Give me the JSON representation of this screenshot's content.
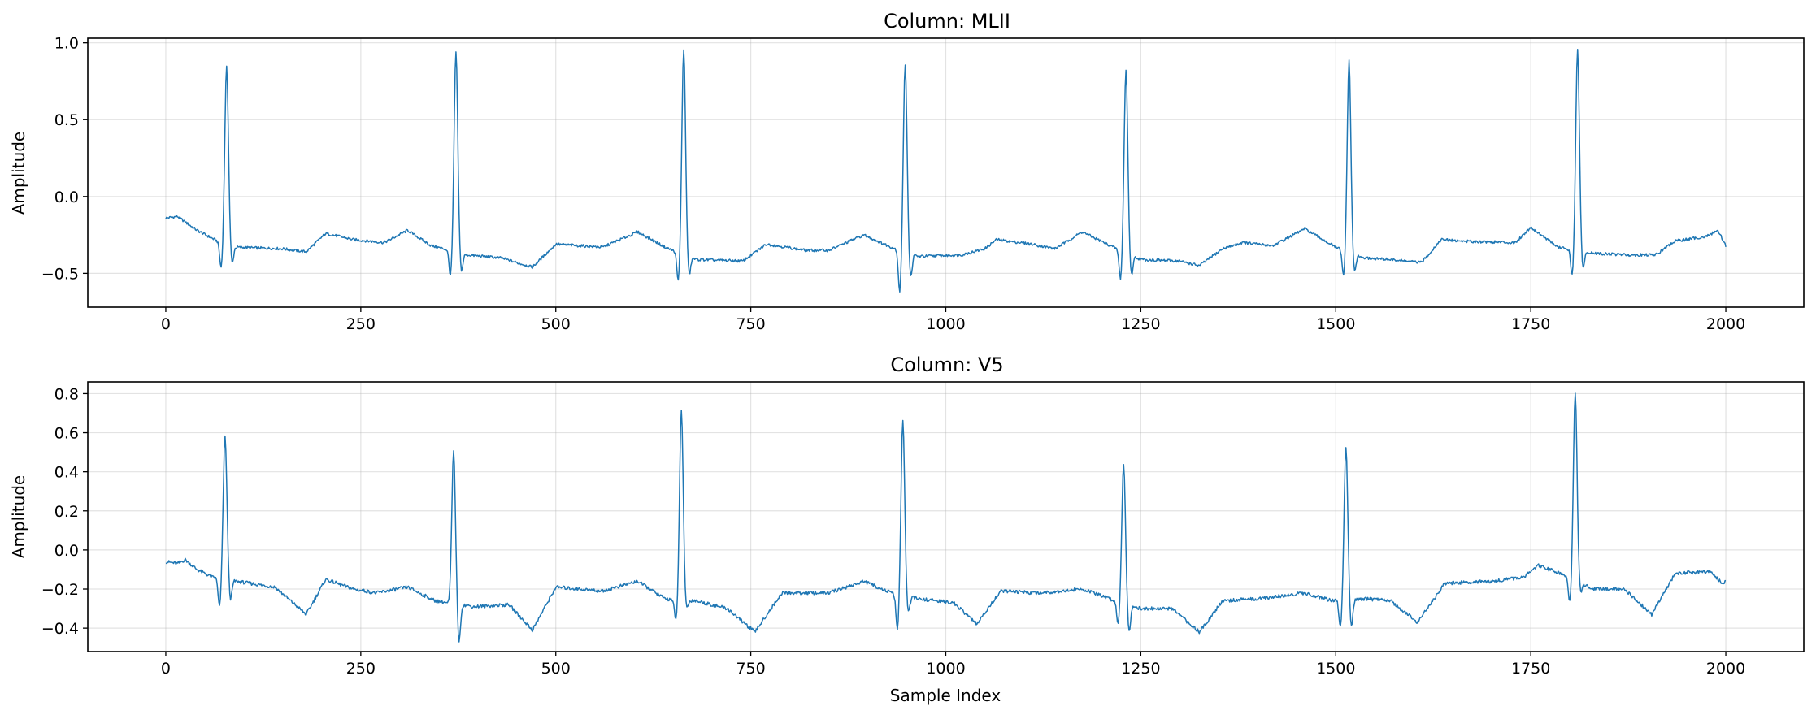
{
  "chart_data": [
    {
      "type": "line",
      "title": "Column: MLII",
      "xlabel": "",
      "ylabel": "Amplitude",
      "xlim": [
        -100,
        2100
      ],
      "ylim": [
        -0.72,
        1.03
      ],
      "xticks": [
        0,
        250,
        500,
        750,
        1000,
        1250,
        1500,
        1750,
        2000
      ],
      "xtick_labels": [
        "0",
        "250",
        "500",
        "750",
        "1000",
        "1250",
        "1500",
        "1750",
        "2000"
      ],
      "yticks": [
        -0.5,
        0.0,
        0.5,
        1.0
      ],
      "ytick_labels": [
        "−0.5",
        "0.0",
        "0.5",
        "1.0"
      ],
      "grid": true,
      "color": "#1f77b4",
      "beats": [
        {
          "peak_x": 78,
          "peak_y": 0.84,
          "q_y": -0.48,
          "s_y": -0.43
        },
        {
          "peak_x": 372,
          "peak_y": 0.94,
          "q_y": -0.53,
          "s_y": -0.48
        },
        {
          "peak_x": 664,
          "peak_y": 0.96,
          "q_y": -0.57,
          "s_y": -0.5
        },
        {
          "peak_x": 948,
          "peak_y": 0.86,
          "q_y": -0.64,
          "s_y": -0.52
        },
        {
          "peak_x": 1231,
          "peak_y": 0.82,
          "q_y": -0.56,
          "s_y": -0.5
        },
        {
          "peak_x": 1517,
          "peak_y": 0.88,
          "q_y": -0.54,
          "s_y": -0.48
        },
        {
          "peak_x": 1810,
          "peak_y": 0.95,
          "q_y": -0.53,
          "s_y": -0.47
        }
      ],
      "baseline": [
        [
          0,
          -0.14
        ],
        [
          15,
          -0.13
        ],
        [
          40,
          -0.22
        ],
        [
          70,
          -0.3
        ],
        [
          90,
          -0.33
        ],
        [
          150,
          -0.34
        ],
        [
          180,
          -0.36
        ],
        [
          205,
          -0.24
        ],
        [
          240,
          -0.28
        ],
        [
          280,
          -0.3
        ],
        [
          310,
          -0.22
        ],
        [
          340,
          -0.32
        ],
        [
          365,
          -0.35
        ],
        [
          385,
          -0.38
        ],
        [
          430,
          -0.4
        ],
        [
          470,
          -0.46
        ],
        [
          500,
          -0.31
        ],
        [
          560,
          -0.33
        ],
        [
          605,
          -0.23
        ],
        [
          640,
          -0.33
        ],
        [
          680,
          -0.41
        ],
        [
          740,
          -0.42
        ],
        [
          770,
          -0.31
        ],
        [
          820,
          -0.35
        ],
        [
          850,
          -0.35
        ],
        [
          895,
          -0.25
        ],
        [
          930,
          -0.33
        ],
        [
          965,
          -0.39
        ],
        [
          1020,
          -0.38
        ],
        [
          1050,
          -0.34
        ],
        [
          1065,
          -0.28
        ],
        [
          1110,
          -0.31
        ],
        [
          1140,
          -0.34
        ],
        [
          1175,
          -0.23
        ],
        [
          1215,
          -0.33
        ],
        [
          1250,
          -0.41
        ],
        [
          1300,
          -0.42
        ],
        [
          1325,
          -0.45
        ],
        [
          1355,
          -0.34
        ],
        [
          1380,
          -0.3
        ],
        [
          1420,
          -0.32
        ],
        [
          1460,
          -0.21
        ],
        [
          1500,
          -0.33
        ],
        [
          1535,
          -0.4
        ],
        [
          1570,
          -0.41
        ],
        [
          1610,
          -0.43
        ],
        [
          1635,
          -0.28
        ],
        [
          1660,
          -0.29
        ],
        [
          1730,
          -0.3
        ],
        [
          1750,
          -0.2
        ],
        [
          1785,
          -0.33
        ],
        [
          1830,
          -0.37
        ],
        [
          1875,
          -0.38
        ],
        [
          1910,
          -0.38
        ],
        [
          1935,
          -0.29
        ],
        [
          1975,
          -0.26
        ],
        [
          1990,
          -0.22
        ],
        [
          2000,
          -0.32
        ]
      ]
    },
    {
      "type": "line",
      "title": "Column: V5",
      "xlabel": "Sample Index",
      "ylabel": "Amplitude",
      "xlim": [
        -100,
        2100
      ],
      "ylim": [
        -0.52,
        0.86
      ],
      "xticks": [
        0,
        250,
        500,
        750,
        1000,
        1250,
        1500,
        1750,
        2000
      ],
      "xtick_labels": [
        "0",
        "250",
        "500",
        "750",
        "1000",
        "1250",
        "1500",
        "1750",
        "2000"
      ],
      "yticks": [
        -0.4,
        -0.2,
        0.0,
        0.2,
        0.4,
        0.6,
        0.8
      ],
      "ytick_labels": [
        "−0.4",
        "−0.2",
        "0.0",
        "0.2",
        "0.4",
        "0.6",
        "0.8"
      ],
      "grid": true,
      "color": "#1f77b4",
      "beats": [
        {
          "peak_x": 76,
          "peak_y": 0.58,
          "q_y": -0.3,
          "s_y": -0.25
        },
        {
          "peak_x": 369,
          "peak_y": 0.5,
          "q_y": -0.28,
          "s_y": -0.47
        },
        {
          "peak_x": 661,
          "peak_y": 0.71,
          "q_y": -0.37,
          "s_y": -0.3
        },
        {
          "peak_x": 945,
          "peak_y": 0.66,
          "q_y": -0.42,
          "s_y": -0.32
        },
        {
          "peak_x": 1228,
          "peak_y": 0.44,
          "q_y": -0.39,
          "s_y": -0.41
        },
        {
          "peak_x": 1513,
          "peak_y": 0.52,
          "q_y": -0.4,
          "s_y": -0.4
        },
        {
          "peak_x": 1807,
          "peak_y": 0.8,
          "q_y": -0.29,
          "s_y": -0.2
        }
      ],
      "baseline": [
        [
          0,
          -0.06
        ],
        [
          15,
          -0.07
        ],
        [
          25,
          -0.05
        ],
        [
          40,
          -0.1
        ],
        [
          60,
          -0.14
        ],
        [
          90,
          -0.16
        ],
        [
          140,
          -0.19
        ],
        [
          180,
          -0.33
        ],
        [
          205,
          -0.15
        ],
        [
          240,
          -0.2
        ],
        [
          270,
          -0.22
        ],
        [
          310,
          -0.19
        ],
        [
          345,
          -0.26
        ],
        [
          395,
          -0.29
        ],
        [
          440,
          -0.28
        ],
        [
          470,
          -0.41
        ],
        [
          500,
          -0.19
        ],
        [
          560,
          -0.21
        ],
        [
          605,
          -0.16
        ],
        [
          640,
          -0.25
        ],
        [
          680,
          -0.26
        ],
        [
          720,
          -0.3
        ],
        [
          755,
          -0.42
        ],
        [
          790,
          -0.22
        ],
        [
          850,
          -0.22
        ],
        [
          895,
          -0.16
        ],
        [
          930,
          -0.22
        ],
        [
          965,
          -0.25
        ],
        [
          1010,
          -0.27
        ],
        [
          1040,
          -0.38
        ],
        [
          1070,
          -0.21
        ],
        [
          1120,
          -0.22
        ],
        [
          1175,
          -0.2
        ],
        [
          1210,
          -0.25
        ],
        [
          1250,
          -0.3
        ],
        [
          1290,
          -0.3
        ],
        [
          1325,
          -0.42
        ],
        [
          1355,
          -0.26
        ],
        [
          1400,
          -0.25
        ],
        [
          1460,
          -0.22
        ],
        [
          1495,
          -0.26
        ],
        [
          1540,
          -0.25
        ],
        [
          1570,
          -0.26
        ],
        [
          1605,
          -0.37
        ],
        [
          1640,
          -0.17
        ],
        [
          1700,
          -0.16
        ],
        [
          1740,
          -0.14
        ],
        [
          1760,
          -0.08
        ],
        [
          1795,
          -0.13
        ],
        [
          1830,
          -0.2
        ],
        [
          1870,
          -0.2
        ],
        [
          1905,
          -0.33
        ],
        [
          1935,
          -0.12
        ],
        [
          1980,
          -0.11
        ],
        [
          1995,
          -0.17
        ],
        [
          2000,
          -0.16
        ]
      ]
    }
  ]
}
